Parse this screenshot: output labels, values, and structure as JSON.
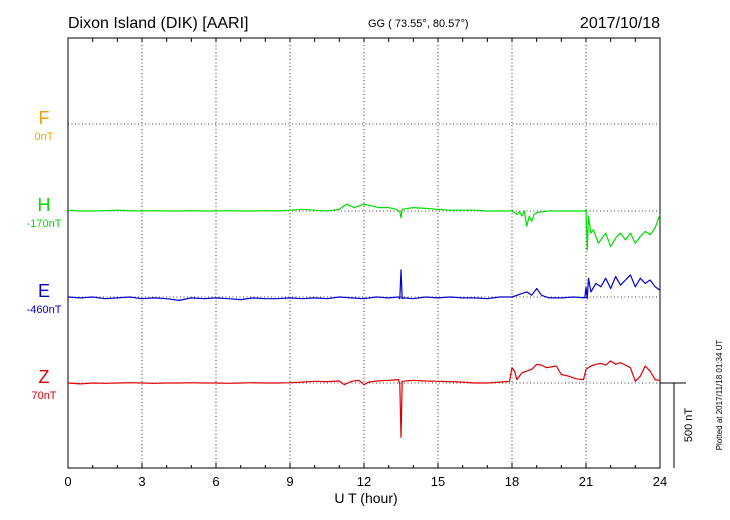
{
  "header": {
    "station": "Dixon Island (DIK)  [AARI]",
    "coords": "GG ( 73.55°,  80.57°)",
    "date": "2017/10/18"
  },
  "footer": {
    "plotted": "Plotted at 2017/11/18 01:34  UT"
  },
  "scale": {
    "label": "500 nT",
    "value_nT": 500
  },
  "chart_data": {
    "type": "line",
    "title": "Dixon Island (DIK)  [AARI]",
    "xlabel": "U T (hour)",
    "xlim": [
      0,
      24
    ],
    "x_ticks": [
      "0",
      "3",
      "6",
      "9",
      "12",
      "15",
      "18",
      "21",
      "24"
    ],
    "grid": true,
    "grid_style": "dotted",
    "channels": [
      {
        "name": "F",
        "baseline_label": "0nT",
        "color": "#f5a000"
      },
      {
        "name": "H",
        "baseline_label": "-170nT",
        "color": "#00dd00"
      },
      {
        "name": "E",
        "baseline_label": "-460nT",
        "color": "#0000cc"
      },
      {
        "name": "Z",
        "baseline_label": "70nT",
        "color": "#dd0000"
      }
    ],
    "series": [
      {
        "name": "H",
        "x": [
          0,
          0.5,
          1,
          1.5,
          2,
          2.5,
          3,
          3.5,
          4,
          4.5,
          5,
          5.5,
          6,
          6.5,
          7,
          7.5,
          8,
          8.5,
          9,
          9.5,
          10,
          10.5,
          11,
          11.3,
          11.6,
          12,
          12.3,
          12.6,
          13,
          13.3,
          13.45,
          13.5,
          13.55,
          14,
          14.5,
          15,
          15.5,
          16,
          16.5,
          17,
          17.5,
          18,
          18.1,
          18.2,
          18.3,
          18.4,
          18.5,
          18.6,
          18.7,
          18.8,
          18.9,
          19,
          19.2,
          19.5,
          20,
          20.5,
          20.95,
          21,
          21.05,
          21.1,
          21.2,
          21.3,
          21.5,
          21.8,
          22,
          22.2,
          22.4,
          22.6,
          22.8,
          23,
          23.2,
          23.4,
          23.6,
          23.8,
          24
        ],
        "values": [
          -165,
          -170,
          -170,
          -168,
          -165,
          -168,
          -170,
          -168,
          -170,
          -170,
          -168,
          -170,
          -170,
          -168,
          -170,
          -170,
          -168,
          -170,
          -165,
          -160,
          -165,
          -170,
          -160,
          -130,
          -150,
          -130,
          -140,
          -150,
          -150,
          -160,
          -175,
          -210,
          -160,
          -150,
          -155,
          -160,
          -165,
          -165,
          -165,
          -170,
          -170,
          -170,
          -180,
          -190,
          -175,
          -200,
          -170,
          -260,
          -200,
          -230,
          -190,
          -180,
          -175,
          -170,
          -170,
          -170,
          -170,
          -160,
          -400,
          -200,
          -300,
          -280,
          -360,
          -300,
          -380,
          -330,
          -300,
          -340,
          -300,
          -360,
          -320,
          -290,
          -310,
          -270,
          -190
        ]
      },
      {
        "name": "E",
        "x": [
          0,
          0.5,
          1,
          1.5,
          2,
          2.5,
          3,
          3.5,
          4,
          4.5,
          5,
          5.5,
          6,
          6.5,
          7,
          7.5,
          8,
          8.5,
          9,
          9.5,
          10,
          10.5,
          11,
          11.5,
          12,
          12.5,
          13,
          13.4,
          13.45,
          13.5,
          13.55,
          13.6,
          14,
          14.5,
          15,
          15.5,
          16,
          16.5,
          17,
          17.5,
          18,
          18.2,
          18.4,
          18.6,
          18.8,
          19,
          19.2,
          19.5,
          20,
          20.5,
          20.95,
          21,
          21.05,
          21.1,
          21.2,
          21.4,
          21.6,
          21.8,
          22,
          22.2,
          22.4,
          22.6,
          22.8,
          23,
          23.2,
          23.4,
          23.6,
          23.8,
          24
        ],
        "values": [
          -460,
          -465,
          -460,
          -470,
          -465,
          -460,
          -470,
          -465,
          -470,
          -480,
          -465,
          -470,
          -465,
          -470,
          -475,
          -465,
          -470,
          -470,
          -465,
          -470,
          -465,
          -470,
          -460,
          -465,
          -470,
          -460,
          -465,
          -460,
          -470,
          -300,
          -470,
          -465,
          -470,
          -460,
          -465,
          -460,
          -465,
          -465,
          -470,
          -460,
          -460,
          -450,
          -440,
          -430,
          -450,
          -410,
          -450,
          -465,
          -465,
          -460,
          -465,
          -400,
          -470,
          -350,
          -430,
          -380,
          -400,
          -350,
          -410,
          -340,
          -390,
          -360,
          -330,
          -400,
          -350,
          -380,
          -360,
          -400,
          -420
        ]
      },
      {
        "name": "Z",
        "x": [
          0,
          0.5,
          1,
          1.5,
          2,
          2.5,
          3,
          3.5,
          4,
          4.5,
          5,
          5.5,
          6,
          6.5,
          7,
          7.5,
          8,
          8.5,
          9,
          9.5,
          10,
          10.5,
          11,
          11.2,
          11.5,
          11.8,
          12,
          12.2,
          12.5,
          13,
          13.4,
          13.45,
          13.5,
          13.55,
          14,
          14.5,
          15,
          15.5,
          16,
          16.5,
          17,
          17.5,
          17.9,
          18,
          18.1,
          18.2,
          18.4,
          18.6,
          18.8,
          19,
          19.2,
          19.4,
          19.6,
          19.8,
          20,
          20.3,
          20.6,
          20.9,
          21,
          21.2,
          21.4,
          21.6,
          21.8,
          22,
          22.2,
          22.4,
          22.6,
          22.8,
          23,
          23.2,
          23.4,
          23.6,
          23.8,
          24
        ],
        "values": [
          70,
          65,
          70,
          68,
          70,
          72,
          70,
          68,
          70,
          70,
          72,
          70,
          70,
          68,
          70,
          72,
          70,
          70,
          72,
          75,
          80,
          78,
          82,
          60,
          80,
          85,
          60,
          75,
          82,
          85,
          90,
          65,
          -250,
          80,
          85,
          82,
          80,
          78,
          75,
          70,
          70,
          75,
          80,
          160,
          140,
          90,
          130,
          140,
          150,
          180,
          175,
          160,
          165,
          170,
          120,
          110,
          95,
          90,
          150,
          170,
          180,
          185,
          175,
          200,
          180,
          190,
          175,
          160,
          80,
          110,
          170,
          140,
          90,
          85
        ]
      }
    ]
  }
}
